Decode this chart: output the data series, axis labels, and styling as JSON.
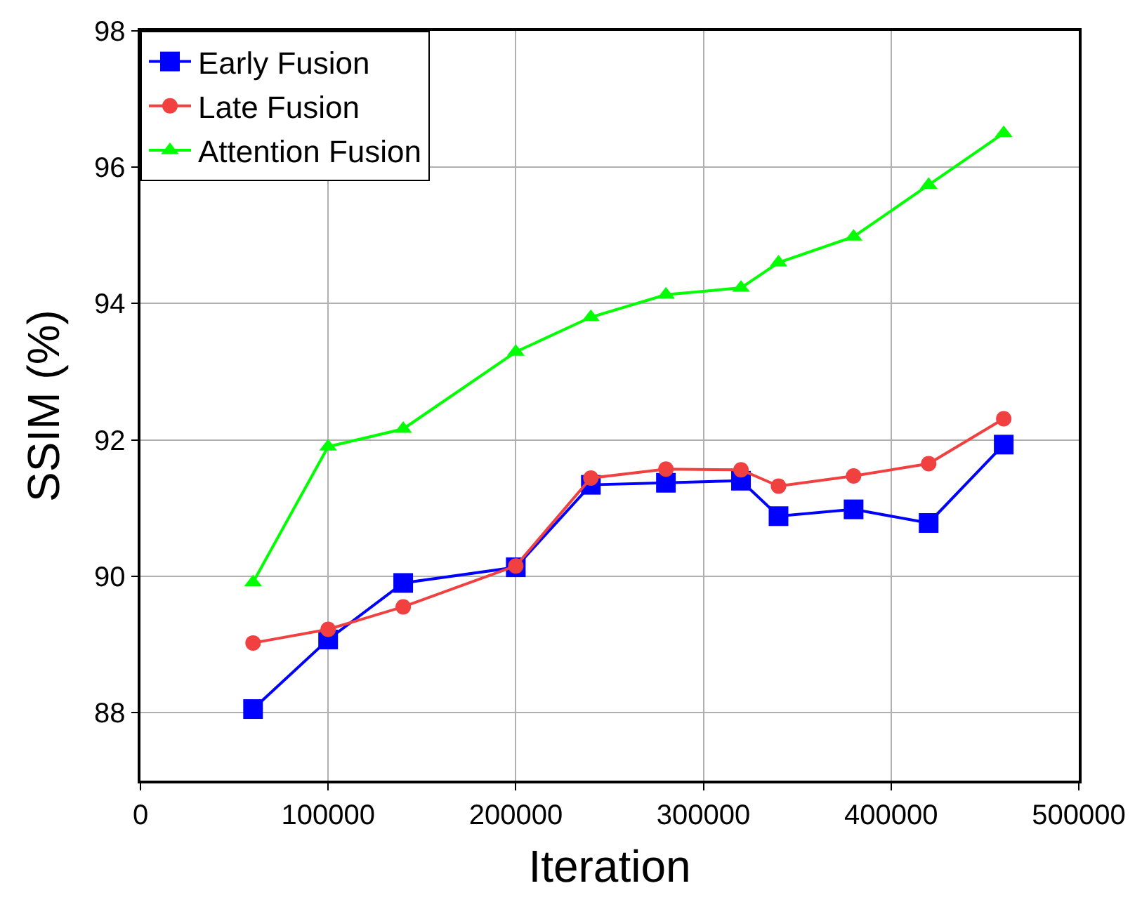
{
  "chart_data": {
    "type": "line",
    "xlabel": "Iteration",
    "ylabel": "SSIM (%)",
    "x": [
      60000,
      100000,
      140000,
      200000,
      240000,
      280000,
      320000,
      340000,
      380000,
      420000,
      460000
    ],
    "series": [
      {
        "name": "Early Fusion",
        "color": "#0000ff",
        "marker": "square",
        "values": [
          88.05,
          89.07,
          89.9,
          90.13,
          91.34,
          91.37,
          91.4,
          90.88,
          90.98,
          90.78,
          91.93
        ]
      },
      {
        "name": "Late Fusion",
        "color": "#f04040",
        "marker": "circle",
        "values": [
          89.02,
          89.22,
          89.55,
          90.15,
          91.44,
          91.57,
          91.56,
          91.32,
          91.47,
          91.65,
          92.31
        ]
      },
      {
        "name": "Attention Fusion",
        "color": "#00ff00",
        "marker": "triangle",
        "values": [
          89.91,
          91.9,
          92.16,
          93.29,
          93.8,
          94.13,
          94.23,
          94.6,
          94.98,
          95.74,
          96.5
        ]
      }
    ],
    "xlim": [
      0,
      500000
    ],
    "xticks": [
      0,
      100000,
      200000,
      300000,
      400000,
      500000
    ],
    "ylim": [
      87,
      98
    ],
    "yticks": [
      88,
      90,
      92,
      94,
      96,
      98
    ],
    "grid": true,
    "legend": "top left",
    "line_style": "solid"
  }
}
